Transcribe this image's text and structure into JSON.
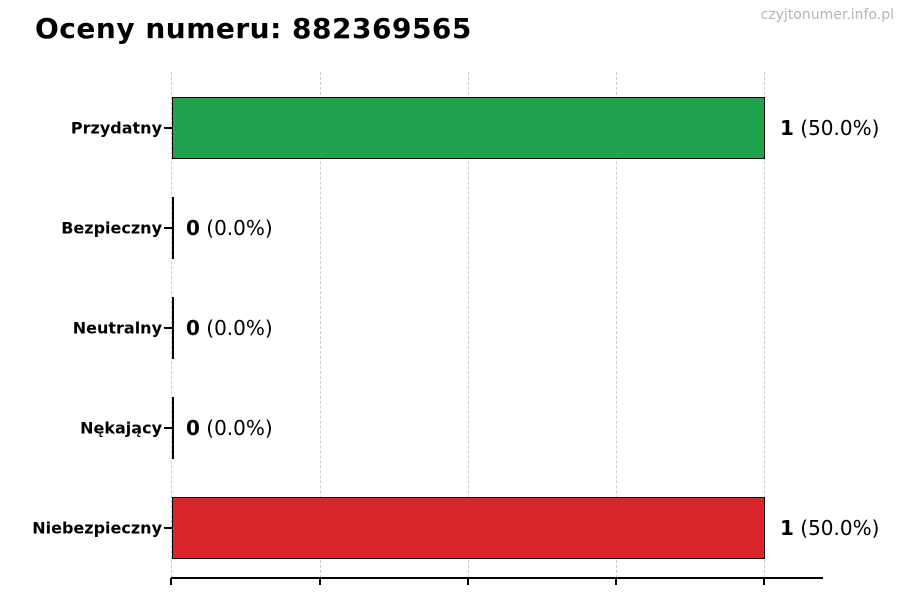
{
  "page": {
    "watermark": "czyjtonumer.info.pl"
  },
  "chart_data": {
    "type": "bar",
    "orientation": "horizontal",
    "title": "Oceny numeru: 882369565",
    "categories": [
      "Przydatny",
      "Bezpieczny",
      "Neutralny",
      "Nękający",
      "Niebezpieczny"
    ],
    "values": [
      1,
      0,
      0,
      0,
      1
    ],
    "percentages": [
      50.0,
      0.0,
      0.0,
      0.0,
      50.0
    ],
    "xlim": [
      0,
      1.1
    ],
    "xticks": [
      0,
      0.25,
      0.5,
      0.75,
      1.0
    ],
    "xtick_labels_visible": false,
    "grid": "vertical-dashed",
    "legend": "none",
    "bar_edge_color": "#000000",
    "gridline_color": "#cccccc",
    "rows": [
      {
        "label": "Przydatny",
        "value": 1,
        "count_text": "1",
        "percent_text": "(50.0%)",
        "color": "#1fa34d"
      },
      {
        "label": "Bezpieczny",
        "value": 0,
        "count_text": "0",
        "percent_text": "(0.0%)",
        "color": "#000000"
      },
      {
        "label": "Neutralny",
        "value": 0,
        "count_text": "0",
        "percent_text": "(0.0%)",
        "color": "#000000"
      },
      {
        "label": "Nękający",
        "value": 0,
        "count_text": "0",
        "percent_text": "(0.0%)",
        "color": "#000000"
      },
      {
        "label": "Niebezpieczny",
        "value": 1,
        "count_text": "1",
        "percent_text": "(50.0%)",
        "color": "#d9262b"
      }
    ]
  }
}
